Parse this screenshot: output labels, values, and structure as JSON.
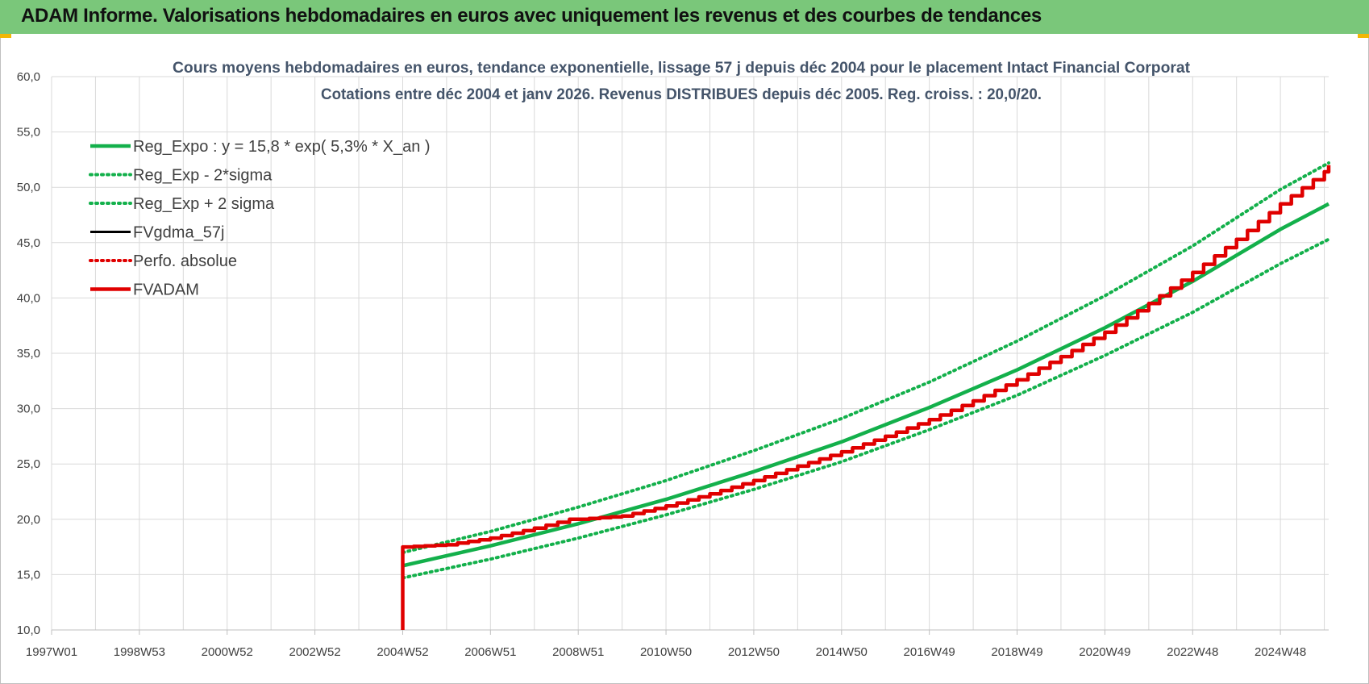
{
  "banner": {
    "title": "ADAM Informe. Valorisations hebdomadaires en euros avec uniquement les revenus et des courbes de tendances"
  },
  "colors": {
    "banner": "#7ac77a",
    "green": "#13b04b",
    "red": "#e00000",
    "black": "#000000",
    "title": "#44546a"
  },
  "chart_data": {
    "type": "line",
    "title": [
      "Cours moyens hebdomadaires en euros, tendance exponentielle, lissage 57 j depuis déc 2004 pour le placement Intact Financial Corporat",
      "Cotations entre déc 2004 et janv 2026. Revenus DISTRIBUES depuis déc 2005. Reg. croiss. : 20,0/20."
    ],
    "xlabel": "",
    "ylabel": "",
    "ylim": [
      10,
      60
    ],
    "yticks": [
      "10,0",
      "15,0",
      "20,0",
      "25,0",
      "30,0",
      "35,0",
      "40,0",
      "45,0",
      "50,0",
      "55,0",
      "60,0"
    ],
    "xlim": [
      1997.0,
      2026.1
    ],
    "xticks": [
      {
        "label": "1997W01",
        "x": 1997.0
      },
      {
        "label": "1998W53",
        "x": 1999.0
      },
      {
        "label": "2000W52",
        "x": 2001.0
      },
      {
        "label": "2002W52",
        "x": 2003.0
      },
      {
        "label": "2004W52",
        "x": 2005.0
      },
      {
        "label": "2006W51",
        "x": 2007.0
      },
      {
        "label": "2008W51",
        "x": 2009.0
      },
      {
        "label": "2010W50",
        "x": 2011.0
      },
      {
        "label": "2012W50",
        "x": 2013.0
      },
      {
        "label": "2014W50",
        "x": 2015.0
      },
      {
        "label": "2016W49",
        "x": 2017.0
      },
      {
        "label": "2018W49",
        "x": 2019.0
      },
      {
        "label": "2020W49",
        "x": 2021.0
      },
      {
        "label": "2022W48",
        "x": 2023.0
      },
      {
        "label": "2024W48",
        "x": 2025.0
      }
    ],
    "grid": true,
    "legend_position": "top-left",
    "series": [
      {
        "name": "Reg_Expo : y = 15,8 * exp( 5,3% *  X_an )",
        "style": "solid-thick",
        "color": "#13b04b",
        "x": [
          2005.0,
          2007.0,
          2009.0,
          2011.0,
          2013.0,
          2015.0,
          2017.0,
          2019.0,
          2021.0,
          2023.0,
          2025.0,
          2026.1
        ],
        "y": [
          15.8,
          17.6,
          19.6,
          21.8,
          24.3,
          27.0,
          30.1,
          33.5,
          37.3,
          41.5,
          46.2,
          48.5
        ]
      },
      {
        "name": "Reg_Exp - 2*sigma",
        "style": "dotted",
        "color": "#13b04b",
        "x": [
          2005.0,
          2007.0,
          2009.0,
          2011.0,
          2013.0,
          2015.0,
          2017.0,
          2019.0,
          2021.0,
          2023.0,
          2025.0,
          2026.1
        ],
        "y": [
          14.7,
          16.4,
          18.3,
          20.4,
          22.7,
          25.2,
          28.1,
          31.2,
          34.8,
          38.7,
          43.1,
          45.3
        ]
      },
      {
        "name": "Reg_Exp + 2 sigma",
        "style": "dotted",
        "color": "#13b04b",
        "x": [
          2005.0,
          2007.0,
          2009.0,
          2011.0,
          2013.0,
          2015.0,
          2017.0,
          2019.0,
          2021.0,
          2023.0,
          2025.0,
          2026.1
        ],
        "y": [
          17.0,
          18.9,
          21.1,
          23.5,
          26.2,
          29.1,
          32.4,
          36.1,
          40.2,
          44.7,
          49.8,
          52.2
        ]
      },
      {
        "name": "FVgdma_57j",
        "style": "solid",
        "color": "#000000",
        "x": [],
        "y": []
      },
      {
        "name": "Perfo. absolue",
        "style": "dotted",
        "color": "#e00000",
        "x": [],
        "y": []
      },
      {
        "name": "FVADAM",
        "style": "solid-thick",
        "color": "#e00000",
        "x": [
          2005.0,
          2005.0,
          2006.0,
          2007.0,
          2008.0,
          2008.8,
          2009.0,
          2010.0,
          2011.0,
          2012.0,
          2013.0,
          2014.0,
          2015.0,
          2016.0,
          2017.0,
          2018.0,
          2019.0,
          2020.0,
          2021.0,
          2022.0,
          2023.0,
          2024.0,
          2025.0,
          2026.0,
          2026.1
        ],
        "y": [
          10.0,
          17.5,
          17.7,
          18.3,
          19.2,
          20.0,
          20.0,
          20.3,
          21.2,
          22.3,
          23.5,
          24.8,
          26.1,
          27.5,
          29.0,
          30.7,
          32.6,
          34.7,
          36.9,
          39.5,
          42.3,
          45.3,
          48.5,
          51.4,
          52.0
        ]
      }
    ]
  }
}
